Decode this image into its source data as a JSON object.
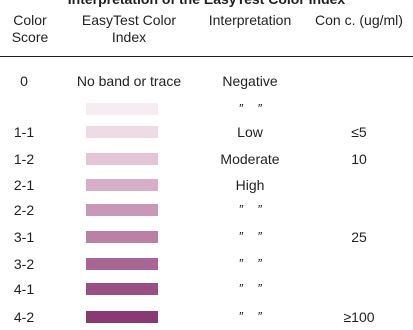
{
  "title": "Interpretation of the EasyTest Color Index",
  "headers": {
    "score": [
      "Color",
      "Score"
    ],
    "index": [
      "EasyTest Color",
      "Index"
    ],
    "interpretation": "Interpretation",
    "conc": "Con c. (ug/ml)"
  },
  "rows": [
    {
      "score": "0",
      "index_text": "No band or trace",
      "swatch_color": null,
      "interpretation": "Negative",
      "conc": ""
    },
    {
      "score": "",
      "index_text": "",
      "swatch_color": "#f6ecf1",
      "interpretation": "”    ”",
      "conc": ""
    },
    {
      "score": "1-1",
      "index_text": "",
      "swatch_color": "#eedbe6",
      "interpretation": "Low",
      "conc": "≤5"
    },
    {
      "score": "1-2",
      "index_text": "",
      "swatch_color": "#e3c5d7",
      "interpretation": "Moderate",
      "conc": "10"
    },
    {
      "score": "2-1",
      "index_text": "",
      "swatch_color": "#d6aec8",
      "interpretation": "High",
      "conc": ""
    },
    {
      "score": "2-2",
      "index_text": "",
      "swatch_color": "#c997b7",
      "interpretation": "”    ”",
      "conc": ""
    },
    {
      "score": "3-1",
      "index_text": "",
      "swatch_color": "#ba80a6",
      "interpretation": "”    ”",
      "conc": "25"
    },
    {
      "score": "3-2",
      "index_text": "",
      "swatch_color": "#a96594",
      "interpretation": "”    ”",
      "conc": ""
    },
    {
      "score": "4-1",
      "index_text": "",
      "swatch_color": "#994f83",
      "interpretation": "”    ”",
      "conc": ""
    },
    {
      "score": "4-2",
      "index_text": "",
      "swatch_color": "#8a3a72",
      "interpretation": "”    ”",
      "conc": "≥100"
    }
  ]
}
